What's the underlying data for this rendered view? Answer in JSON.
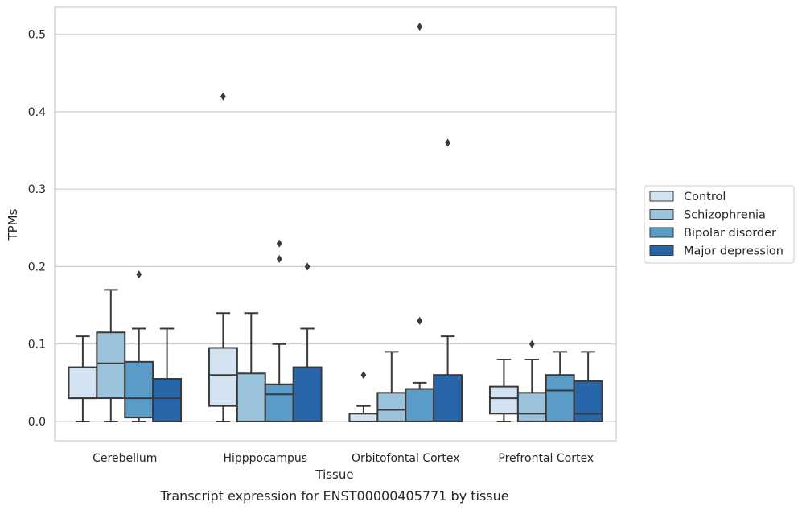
{
  "chart_data": {
    "type": "box",
    "caption": "Transcript expression for ENST00000405771 by tissue",
    "xlabel": "Tissue",
    "ylabel": "TPMs",
    "ylim": [
      -0.025,
      0.535
    ],
    "yticks": [
      0.0,
      0.1,
      0.2,
      0.3,
      0.4,
      0.5
    ],
    "ytick_labels": [
      "0.0",
      "0.1",
      "0.2",
      "0.3",
      "0.4",
      "0.5"
    ],
    "grid": true,
    "legend_position": "right",
    "categories": [
      "Cerebellum",
      "Hipppocampus",
      "Orbitofontal Cortex",
      "Prefrontal Cortex"
    ],
    "series": [
      {
        "name": "Control",
        "color": "#d3e3f2",
        "boxes": [
          {
            "whisker_low": 0.0,
            "q1": 0.03,
            "median": 0.03,
            "q3": 0.07,
            "whisker_high": 0.11,
            "outliers": []
          },
          {
            "whisker_low": 0.0,
            "q1": 0.02,
            "median": 0.06,
            "q3": 0.095,
            "whisker_high": 0.14,
            "outliers": [
              0.42
            ]
          },
          {
            "whisker_low": 0.0,
            "q1": 0.0,
            "median": 0.0,
            "q3": 0.01,
            "whisker_high": 0.02,
            "outliers": [
              0.06
            ]
          },
          {
            "whisker_low": 0.0,
            "q1": 0.01,
            "median": 0.03,
            "q3": 0.045,
            "whisker_high": 0.08,
            "outliers": []
          }
        ]
      },
      {
        "name": "Schizophrenia",
        "color": "#9cc3dc",
        "boxes": [
          {
            "whisker_low": 0.0,
            "q1": 0.03,
            "median": 0.075,
            "q3": 0.115,
            "whisker_high": 0.17,
            "outliers": []
          },
          {
            "whisker_low": 0.0,
            "q1": 0.0,
            "median": 0.0,
            "q3": 0.062,
            "whisker_high": 0.14,
            "outliers": []
          },
          {
            "whisker_low": 0.0,
            "q1": 0.0,
            "median": 0.015,
            "q3": 0.037,
            "whisker_high": 0.09,
            "outliers": []
          },
          {
            "whisker_low": 0.0,
            "q1": 0.0,
            "median": 0.01,
            "q3": 0.037,
            "whisker_high": 0.08,
            "outliers": [
              0.1
            ]
          }
        ]
      },
      {
        "name": "Bipolar disorder",
        "color": "#5a9bc7",
        "boxes": [
          {
            "whisker_low": 0.0,
            "q1": 0.005,
            "median": 0.03,
            "q3": 0.077,
            "whisker_high": 0.12,
            "outliers": [
              0.19
            ]
          },
          {
            "whisker_low": 0.0,
            "q1": 0.0,
            "median": 0.035,
            "q3": 0.048,
            "whisker_high": 0.1,
            "outliers": [
              0.21,
              0.23
            ]
          },
          {
            "whisker_low": 0.0,
            "q1": 0.0,
            "median": 0.0,
            "q3": 0.042,
            "whisker_high": 0.05,
            "outliers": [
              0.13,
              0.51
            ]
          },
          {
            "whisker_low": 0.0,
            "q1": 0.0,
            "median": 0.04,
            "q3": 0.06,
            "whisker_high": 0.09,
            "outliers": []
          }
        ]
      },
      {
        "name": "Major depression",
        "color": "#2766a8",
        "boxes": [
          {
            "whisker_low": 0.0,
            "q1": 0.0,
            "median": 0.03,
            "q3": 0.055,
            "whisker_high": 0.12,
            "outliers": []
          },
          {
            "whisker_low": 0.0,
            "q1": 0.0,
            "median": 0.0,
            "q3": 0.07,
            "whisker_high": 0.12,
            "outliers": [
              0.2
            ]
          },
          {
            "whisker_low": 0.0,
            "q1": 0.0,
            "median": 0.0,
            "q3": 0.06,
            "whisker_high": 0.11,
            "outliers": [
              0.36
            ]
          },
          {
            "whisker_low": 0.0,
            "q1": 0.0,
            "median": 0.01,
            "q3": 0.052,
            "whisker_high": 0.09,
            "outliers": []
          }
        ]
      }
    ]
  }
}
